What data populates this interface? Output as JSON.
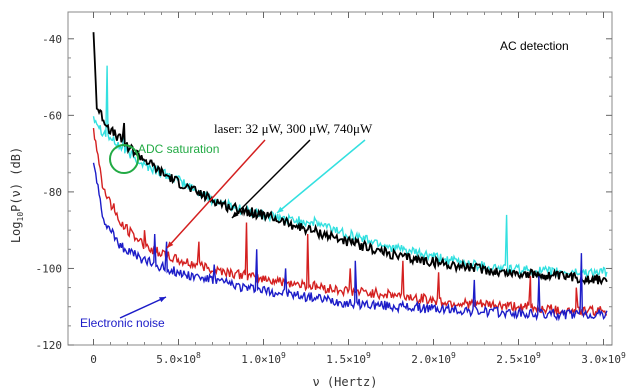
{
  "chart_data": {
    "type": "line",
    "title": "",
    "xlabel": "ν (Hertz)",
    "ylabel": "Log10P(ν) (dB)",
    "ylabel_parts": {
      "main": "Log",
      "sub": "10",
      "rest": "P(ν)  (dB)"
    },
    "xlim": [
      -150000000.0,
      3050000000.0
    ],
    "ylim": [
      -120,
      -33
    ],
    "x_ticks": [
      {
        "value": 0,
        "label": "0",
        "sup": ""
      },
      {
        "value": 500000000.0,
        "label": "5.0×10",
        "sup": "8"
      },
      {
        "value": 1000000000.0,
        "label": "1.0×10",
        "sup": "9"
      },
      {
        "value": 1500000000.0,
        "label": "1.5×10",
        "sup": "9"
      },
      {
        "value": 2000000000.0,
        "label": "2.0×10",
        "sup": "9"
      },
      {
        "value": 2500000000.0,
        "label": "2.5×10",
        "sup": "9"
      },
      {
        "value": 3000000000.0,
        "label": "3.0×10",
        "sup": "9"
      }
    ],
    "y_ticks": [
      {
        "value": -40,
        "label": "-40"
      },
      {
        "value": -60,
        "label": "-60"
      },
      {
        "value": -80,
        "label": "-80"
      },
      {
        "value": -100,
        "label": "-100"
      },
      {
        "value": -120,
        "label": "-120"
      }
    ],
    "grid": false,
    "series": [
      {
        "name": "",
        "color": "#33e0e0",
        "baseline": [
          [
            0,
            -60
          ],
          [
            50000000.0,
            -64
          ],
          [
            150000000.0,
            -68
          ],
          [
            300000000.0,
            -73
          ],
          [
            500000000.0,
            -77
          ],
          [
            700000000.0,
            -82
          ],
          [
            900000000.0,
            -85
          ],
          [
            1100000000.0,
            -87
          ],
          [
            1300000000.0,
            -88
          ],
          [
            1500000000.0,
            -91
          ],
          [
            1800000000.0,
            -95
          ],
          [
            2100000000.0,
            -98
          ],
          [
            2400000000.0,
            -100
          ],
          [
            2700000000.0,
            -101
          ],
          [
            3000000000.0,
            -101
          ]
        ],
        "spikes": [
          [
            80000000.0,
            -47
          ],
          [
            180000000.0,
            -63
          ],
          [
            2430000000.0,
            -86
          ]
        ]
      },
      {
        "name": "",
        "color": "#000000",
        "baseline": [
          [
            0,
            -38
          ],
          [
            20000000.0,
            -58
          ],
          [
            100000000.0,
            -64
          ],
          [
            200000000.0,
            -68
          ],
          [
            400000000.0,
            -75
          ],
          [
            600000000.0,
            -80
          ],
          [
            800000000.0,
            -84
          ],
          [
            1000000000.0,
            -86
          ],
          [
            1200000000.0,
            -89
          ],
          [
            1500000000.0,
            -93
          ],
          [
            1800000000.0,
            -97
          ],
          [
            2100000000.0,
            -99
          ],
          [
            2400000000.0,
            -101
          ],
          [
            2700000000.0,
            -102
          ],
          [
            3000000000.0,
            -103
          ]
        ],
        "spikes": [
          [
            180000000.0,
            -62
          ]
        ]
      },
      {
        "name": "",
        "color": "#d42020",
        "baseline": [
          [
            0,
            -63
          ],
          [
            50000000.0,
            -78
          ],
          [
            150000000.0,
            -88
          ],
          [
            300000000.0,
            -94
          ],
          [
            500000000.0,
            -98
          ],
          [
            700000000.0,
            -100
          ],
          [
            900000000.0,
            -102
          ],
          [
            1200000000.0,
            -104
          ],
          [
            1500000000.0,
            -106
          ],
          [
            1800000000.0,
            -107
          ],
          [
            2100000000.0,
            -109
          ],
          [
            2500000000.0,
            -110
          ],
          [
            2800000000.0,
            -111
          ],
          [
            3000000000.0,
            -111
          ]
        ],
        "spikes": [
          [
            120000000.0,
            -83
          ],
          [
            300000000.0,
            -90
          ],
          [
            620000000.0,
            -93
          ],
          [
            900000000.0,
            -88
          ],
          [
            1260000000.0,
            -91
          ],
          [
            1510000000.0,
            -100
          ],
          [
            1820000000.0,
            -98
          ],
          [
            2030000000.0,
            -101
          ],
          [
            2570000000.0,
            -102
          ],
          [
            2840000000.0,
            -105
          ]
        ]
      },
      {
        "name": "",
        "color": "#1c1cc8",
        "baseline": [
          [
            0,
            -72
          ],
          [
            50000000.0,
            -86
          ],
          [
            150000000.0,
            -94
          ],
          [
            300000000.0,
            -98
          ],
          [
            500000000.0,
            -101
          ],
          [
            700000000.0,
            -103
          ],
          [
            900000000.0,
            -105
          ],
          [
            1200000000.0,
            -107
          ],
          [
            1500000000.0,
            -109
          ],
          [
            1800000000.0,
            -110
          ],
          [
            2200000000.0,
            -111
          ],
          [
            2600000000.0,
            -112
          ],
          [
            3000000000.0,
            -112
          ]
        ],
        "spikes": [
          [
            360000000.0,
            -91
          ],
          [
            430000000.0,
            -93
          ],
          [
            710000000.0,
            -99
          ],
          [
            960000000.0,
            -95
          ],
          [
            1130000000.0,
            -100
          ],
          [
            1540000000.0,
            -98
          ],
          [
            2240000000.0,
            -103
          ],
          [
            2620000000.0,
            -102
          ],
          [
            2870000000.0,
            -96
          ]
        ]
      }
    ],
    "annotations": [
      {
        "id": "ac",
        "text": "AC detection",
        "color": "#000000"
      },
      {
        "id": "laser",
        "text": "laser: 32 μW, 300 μW, 740μW",
        "color": "#000000"
      },
      {
        "id": "adc",
        "text": "ADC saturation",
        "color": "#22aa44"
      },
      {
        "id": "noise",
        "text": "Electronic noise",
        "color": "#1c1cc8"
      }
    ]
  }
}
